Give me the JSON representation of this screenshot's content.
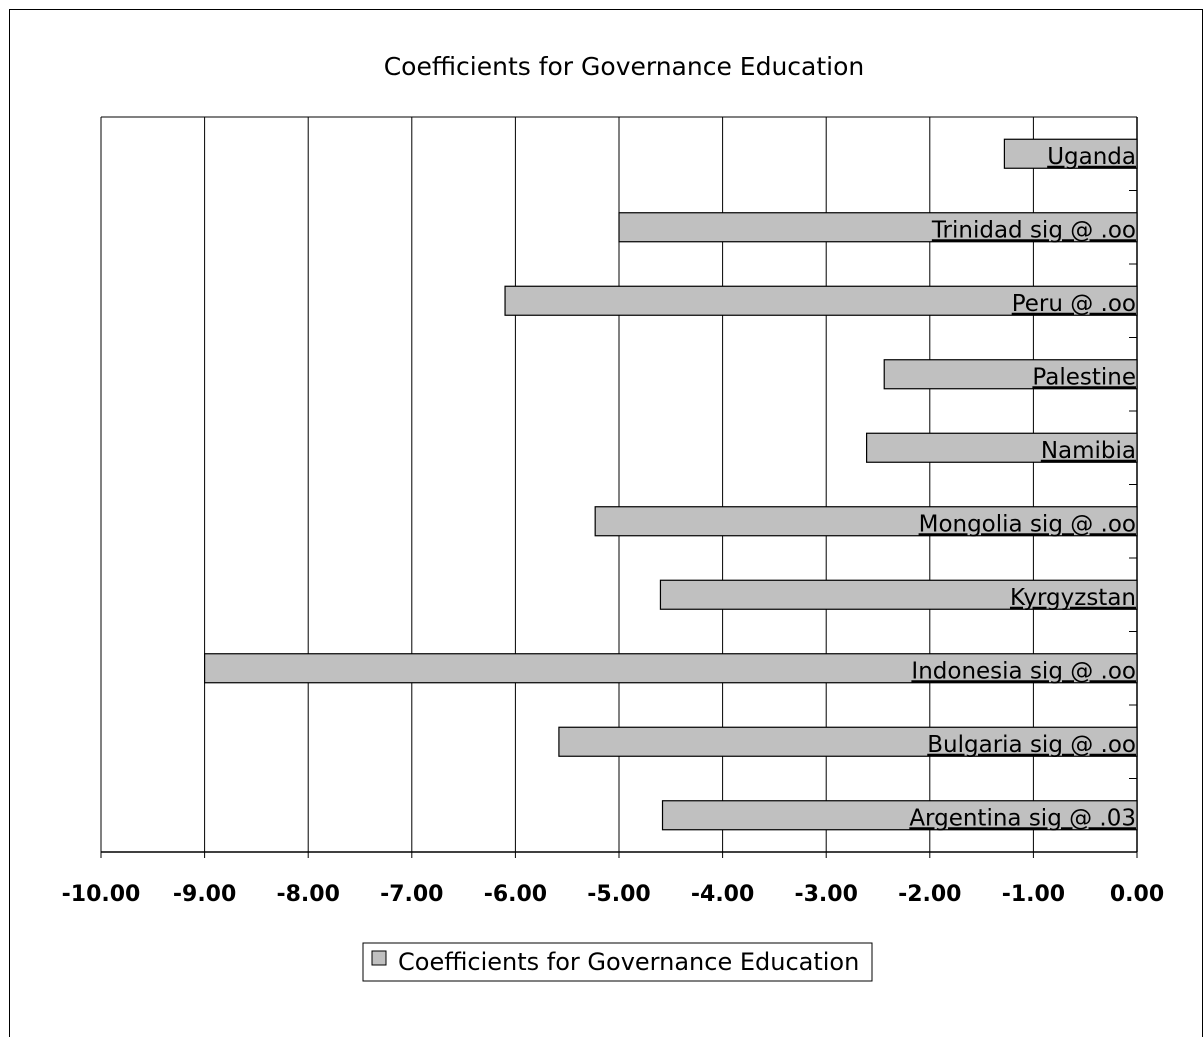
{
  "chart_data": {
    "type": "bar",
    "orientation": "horizontal",
    "title": "Coefficients for Governance Education",
    "categories": [
      "Argentina sig @ .03",
      "Bulgaria sig @ .oo",
      "Indonesia sig @ .oo",
      "Kyrgyzstan",
      "Mongolia sig @ .oo",
      "Namibia",
      "Palestine",
      "Peru @ .oo",
      "Trinidad sig @ .oo",
      "Uganda"
    ],
    "series": [
      {
        "name": "Coefficients for Governance Education",
        "values": [
          -4.58,
          -5.58,
          -9.0,
          -4.6,
          -5.23,
          -2.61,
          -2.44,
          -6.1,
          -5.0,
          -1.28
        ],
        "color": "#c0c0c0"
      }
    ],
    "xlim": [
      -10,
      0
    ],
    "xticks": [
      -10,
      -9,
      -8,
      -7,
      -6,
      -5,
      -4,
      -3,
      -2,
      -1,
      0
    ],
    "xtick_labels": [
      "-10.00",
      "-9.00",
      "-8.00",
      "-7.00",
      "-6.00",
      "-5.00",
      "-4.00",
      "-3.00",
      "-2.00",
      "-1.00",
      "0.00"
    ],
    "xlabel": "",
    "ylabel": "",
    "grid": "vertical",
    "legend": {
      "position": "bottom",
      "labels": [
        "Coefficients for Governance Education"
      ]
    }
  }
}
